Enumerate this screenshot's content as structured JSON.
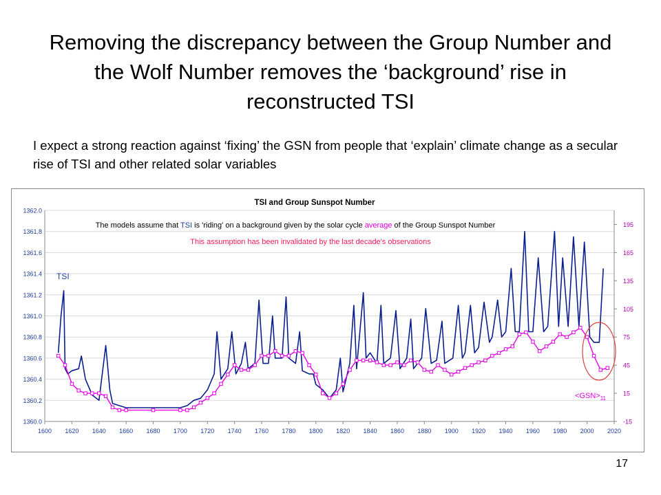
{
  "slide": {
    "title": "Removing the discrepancy between the Group Number and the Wolf Number removes the ‘background’ rise in reconstructed TSI",
    "subtitle": "I expect a strong reaction against ‘fixing’ the GSN from people that ‘explain’ climate change as a secular rise of TSI and other related solar variables",
    "page_number": "17"
  },
  "colors": {
    "tsi": "#0a1f8f",
    "gsn": "#e600e6",
    "annotation_black": "#000000",
    "annotation_red": "#ff1c5a",
    "circle": "#e04040",
    "right_axis": "#b000b0",
    "left_axis": "#1f3f9f",
    "grid": "#d9d9d9"
  },
  "chart_data": {
    "type": "line",
    "title": "TSI and Group Sunspot Number",
    "annotation_line1": {
      "part1": "The models assume that ",
      "part2": "TSI",
      "part3": " is 'riding' on a background given by the solar cycle ",
      "part4": "average",
      "part5": " of the Group Sunspot Number"
    },
    "annotation_line2": "This assumption has been invalidated by the last decade's observations",
    "tsi_label": "TSI",
    "gsn_label": "<GSN>",
    "gsn_label_sub": "11",
    "x_ticks": [
      "1600",
      "1620",
      "1640",
      "1660",
      "1680",
      "1700",
      "1720",
      "1740",
      "1760",
      "1780",
      "1800",
      "1820",
      "1840",
      "1860",
      "1880",
      "1900",
      "1920",
      "1940",
      "1960",
      "1980",
      "2000",
      "2020"
    ],
    "y_left_ticks": [
      "1360.0",
      "1360.2",
      "1360.4",
      "1360.6",
      "1360.8",
      "1361.0",
      "1361.2",
      "1361.4",
      "1361.6",
      "1361.8",
      "1362.0"
    ],
    "y_right_ticks": [
      "-15",
      "15",
      "45",
      "75",
      "105",
      "135",
      "165",
      "195"
    ],
    "xlim": [
      1600,
      2020
    ],
    "ylim_left": [
      1360.0,
      1362.0
    ],
    "ylim_right": [
      -15,
      210
    ],
    "grid": "horizontal",
    "series": [
      {
        "name": "TSI",
        "axis": "left",
        "x": [
          1610,
          1612,
          1614,
          1615,
          1617,
          1620,
          1625,
          1627,
          1630,
          1635,
          1640,
          1645,
          1648,
          1650,
          1655,
          1660,
          1680,
          1700,
          1705,
          1710,
          1715,
          1720,
          1725,
          1727,
          1730,
          1735,
          1738,
          1741,
          1745,
          1748,
          1750,
          1755,
          1758,
          1761,
          1765,
          1768,
          1770,
          1775,
          1778,
          1780,
          1785,
          1788,
          1790,
          1795,
          1798,
          1800,
          1805,
          1810,
          1815,
          1818,
          1820,
          1825,
          1828,
          1830,
          1835,
          1837,
          1840,
          1845,
          1848,
          1850,
          1855,
          1859,
          1862,
          1867,
          1870,
          1872,
          1878,
          1881,
          1885,
          1889,
          1893,
          1895,
          1901,
          1905,
          1908,
          1910,
          1914,
          1917,
          1920,
          1924,
          1928,
          1930,
          1934,
          1937,
          1940,
          1944,
          1947,
          1950,
          1954,
          1957,
          1960,
          1964,
          1968,
          1971,
          1976,
          1979,
          1982,
          1986,
          1990,
          1994,
          1998,
          2002,
          2005,
          2009,
          2012
        ],
        "y": [
          1360.65,
          1361.0,
          1361.24,
          1360.5,
          1360.45,
          1360.48,
          1360.5,
          1360.62,
          1360.4,
          1360.25,
          1360.2,
          1360.72,
          1360.3,
          1360.17,
          1360.15,
          1360.13,
          1360.13,
          1360.13,
          1360.15,
          1360.2,
          1360.22,
          1360.3,
          1360.45,
          1360.85,
          1360.4,
          1360.5,
          1360.85,
          1360.45,
          1360.55,
          1360.75,
          1360.5,
          1360.55,
          1361.15,
          1360.55,
          1360.55,
          1361.0,
          1360.6,
          1360.6,
          1361.18,
          1360.6,
          1360.55,
          1360.85,
          1360.48,
          1360.45,
          1360.45,
          1360.35,
          1360.3,
          1360.22,
          1360.3,
          1360.6,
          1360.28,
          1360.55,
          1361.1,
          1360.5,
          1361.22,
          1360.6,
          1360.65,
          1360.55,
          1361.1,
          1360.55,
          1360.6,
          1361.05,
          1360.5,
          1360.6,
          1360.97,
          1360.5,
          1360.6,
          1361.07,
          1360.55,
          1360.58,
          1360.95,
          1360.55,
          1360.6,
          1361.1,
          1360.6,
          1360.65,
          1361.1,
          1360.65,
          1360.7,
          1361.13,
          1360.75,
          1360.8,
          1361.15,
          1360.8,
          1360.85,
          1361.45,
          1360.85,
          1360.85,
          1361.8,
          1360.85,
          1360.85,
          1361.55,
          1360.85,
          1360.9,
          1361.8,
          1360.9,
          1361.55,
          1360.9,
          1361.75,
          1360.9,
          1361.7,
          1360.8,
          1360.75,
          1360.75,
          1361.45
        ]
      },
      {
        "name": "<GSN>11",
        "axis": "right",
        "x": [
          1610,
          1615,
          1620,
          1625,
          1630,
          1635,
          1640,
          1645,
          1650,
          1655,
          1660,
          1680,
          1700,
          1705,
          1710,
          1715,
          1720,
          1725,
          1730,
          1735,
          1740,
          1745,
          1750,
          1755,
          1760,
          1765,
          1770,
          1775,
          1780,
          1785,
          1790,
          1795,
          1800,
          1805,
          1810,
          1815,
          1820,
          1825,
          1830,
          1835,
          1840,
          1845,
          1850,
          1855,
          1860,
          1865,
          1870,
          1875,
          1880,
          1885,
          1890,
          1895,
          1900,
          1905,
          1910,
          1915,
          1920,
          1925,
          1930,
          1935,
          1940,
          1945,
          1950,
          1955,
          1960,
          1965,
          1970,
          1975,
          1980,
          1985,
          1990,
          1995,
          2000,
          2005,
          2010,
          2015
        ],
        "y": [
          55,
          45,
          25,
          18,
          15,
          15,
          15,
          12,
          0,
          -3,
          -3,
          -3,
          -3,
          -3,
          0,
          5,
          10,
          15,
          25,
          35,
          45,
          40,
          40,
          45,
          55,
          55,
          60,
          55,
          55,
          60,
          58,
          45,
          35,
          15,
          10,
          15,
          25,
          40,
          50,
          50,
          50,
          48,
          45,
          45,
          48,
          45,
          50,
          48,
          40,
          38,
          45,
          40,
          35,
          38,
          42,
          45,
          48,
          50,
          55,
          58,
          62,
          65,
          78,
          80,
          70,
          60,
          65,
          70,
          78,
          75,
          80,
          85,
          75,
          55,
          40,
          42
        ]
      }
    ]
  }
}
